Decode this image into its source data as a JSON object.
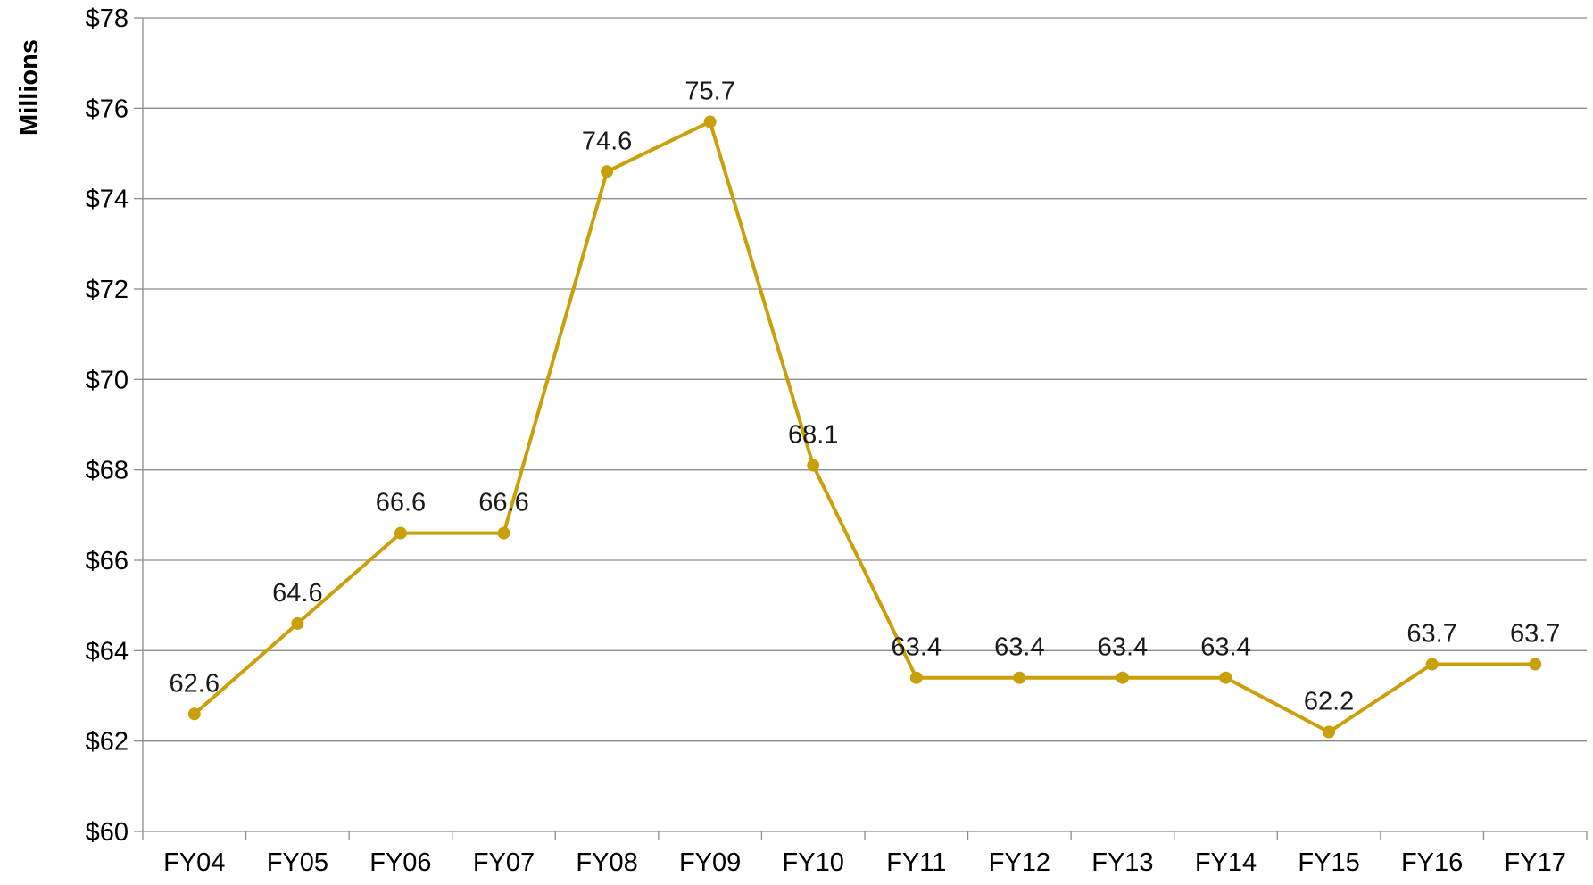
{
  "chart_data": {
    "type": "line",
    "ylabel": "Millions",
    "ylim": [
      60,
      78
    ],
    "ytick_step": 2,
    "ytick_labels": [
      "$60",
      "$62",
      "$64",
      "$66",
      "$68",
      "$70",
      "$72",
      "$74",
      "$76",
      "$78"
    ],
    "grid": true,
    "legend": "none",
    "colors": {
      "series": "#c9a009",
      "grid": "#8c8c8c",
      "axis": "#8c8c8c"
    },
    "categories": [
      "FY04",
      "FY05",
      "FY06",
      "FY07",
      "FY08",
      "FY09",
      "FY10",
      "FY11",
      "FY12",
      "FY13",
      "FY14",
      "FY15",
      "FY16",
      "FY17"
    ],
    "series": [
      {
        "values": [
          62.6,
          64.6,
          66.6,
          66.6,
          74.6,
          75.7,
          68.1,
          63.4,
          63.4,
          63.4,
          63.4,
          62.2,
          63.7,
          63.7
        ],
        "labels": [
          "62.6",
          "64.6",
          "66.6",
          "66.6",
          "74.6",
          "75.7",
          "68.1",
          "63.4",
          "63.4",
          "63.4",
          "63.4",
          "62.2",
          "63.7",
          "63.7"
        ]
      }
    ]
  }
}
